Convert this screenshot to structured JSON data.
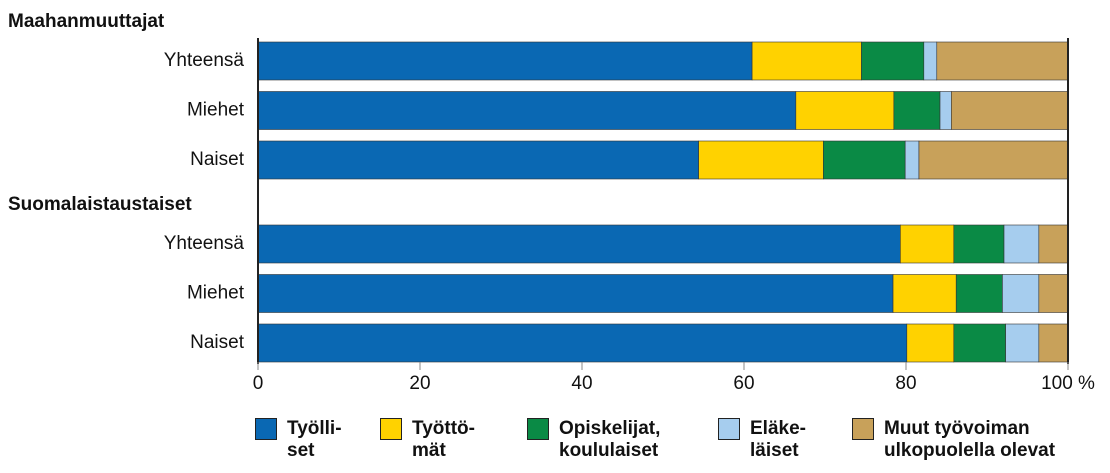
{
  "chart_data": {
    "type": "stacked-bar-horizontal",
    "groups": [
      {
        "name": "Maahanmuuttajat",
        "categories": [
          "Yhteensä",
          "Miehet",
          "Naiset"
        ]
      },
      {
        "name": "Suomalaistaustaiset",
        "categories": [
          "Yhteensä",
          "Miehet",
          "Naiset"
        ]
      }
    ],
    "series": [
      {
        "name": "Työlli-\nset",
        "color": "#0a68b3",
        "values": [
          61,
          66.4,
          54.4,
          79.3,
          78.4,
          80.1
        ]
      },
      {
        "name": "Työttö-\nmät",
        "color": "#ffd200",
        "values": [
          13.5,
          12.1,
          15.4,
          6.6,
          7.8,
          5.8
        ]
      },
      {
        "name": "Opiskelijat,\nkoululaiset",
        "color": "#0a8a45",
        "values": [
          7.7,
          5.7,
          10.1,
          6.2,
          5.7,
          6.4
        ]
      },
      {
        "name": "Eläke-\nläiset",
        "color": "#a6cdee",
        "values": [
          1.6,
          1.4,
          1.7,
          4.3,
          4.5,
          4.1
        ]
      },
      {
        "name": "Muut työvoiman\nulkopuolella olevat",
        "color": "#c8a15a",
        "values": [
          16.2,
          14.4,
          18.4,
          3.6,
          3.6,
          3.6
        ]
      }
    ],
    "xlim": [
      0,
      100
    ],
    "xticks": [
      0,
      20,
      40,
      60,
      80,
      {
        "value": 100,
        "label": "100 %"
      }
    ]
  }
}
